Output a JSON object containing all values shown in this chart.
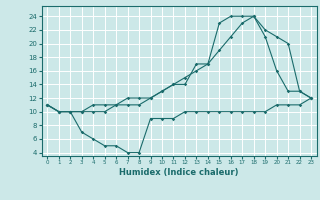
{
  "title": "",
  "xlabel": "Humidex (Indice chaleur)",
  "bg_color": "#cce8e8",
  "grid_color": "#ffffff",
  "line_color": "#1a6b6b",
  "xlim": [
    -0.5,
    23.5
  ],
  "ylim": [
    3.5,
    25.5
  ],
  "xticks": [
    0,
    1,
    2,
    3,
    4,
    5,
    6,
    7,
    8,
    9,
    10,
    11,
    12,
    13,
    14,
    15,
    16,
    17,
    18,
    19,
    20,
    21,
    22,
    23
  ],
  "yticks": [
    4,
    6,
    8,
    10,
    12,
    14,
    16,
    18,
    20,
    22,
    24
  ],
  "series1_x": [
    0,
    1,
    2,
    3,
    4,
    5,
    6,
    7,
    8,
    9,
    10,
    11,
    12,
    13,
    14,
    15,
    16,
    17,
    18,
    19,
    20,
    21,
    22,
    23
  ],
  "series1_y": [
    11,
    10,
    10,
    10,
    10,
    10,
    11,
    11,
    11,
    12,
    13,
    14,
    14,
    17,
    17,
    23,
    24,
    24,
    24,
    21,
    16,
    13,
    13,
    12
  ],
  "series2_x": [
    0,
    1,
    2,
    3,
    4,
    5,
    6,
    7,
    8,
    9,
    10,
    11,
    12,
    13,
    14,
    15,
    16,
    17,
    18,
    19,
    20,
    21,
    22,
    23
  ],
  "series2_y": [
    11,
    10,
    10,
    10,
    11,
    11,
    11,
    12,
    12,
    12,
    13,
    14,
    15,
    16,
    17,
    19,
    21,
    23,
    24,
    22,
    21,
    20,
    13,
    12
  ],
  "series3_x": [
    0,
    1,
    2,
    3,
    4,
    5,
    6,
    7,
    8,
    9,
    10,
    11,
    12,
    13,
    14,
    15,
    16,
    17,
    18,
    19,
    20,
    21,
    22,
    23
  ],
  "series3_y": [
    11,
    10,
    10,
    7,
    6,
    5,
    5,
    4,
    4,
    9,
    9,
    9,
    10,
    10,
    10,
    10,
    10,
    10,
    10,
    10,
    11,
    11,
    11,
    12
  ]
}
